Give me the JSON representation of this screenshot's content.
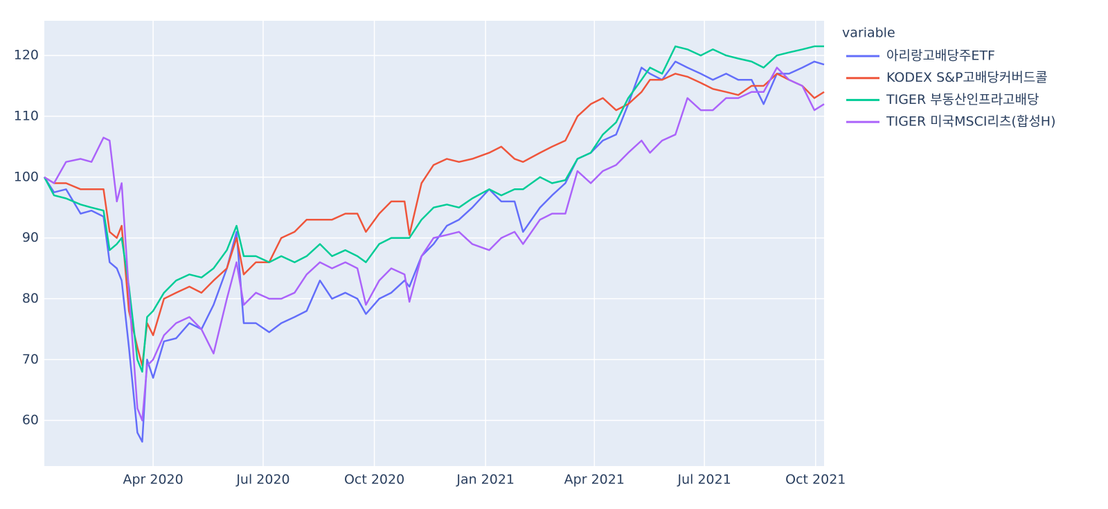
{
  "chart_data": {
    "type": "line",
    "legend_title": "variable",
    "legend_position": "right",
    "grid": true,
    "x": [
      "2020-01-02",
      "2020-01-10",
      "2020-01-20",
      "2020-02-01",
      "2020-02-10",
      "2020-02-20",
      "2020-02-25",
      "2020-03-02",
      "2020-03-06",
      "2020-03-12",
      "2020-03-19",
      "2020-03-23",
      "2020-03-27",
      "2020-04-01",
      "2020-04-10",
      "2020-04-20",
      "2020-05-01",
      "2020-05-11",
      "2020-05-21",
      "2020-06-01",
      "2020-06-09",
      "2020-06-15",
      "2020-06-25",
      "2020-07-06",
      "2020-07-16",
      "2020-07-27",
      "2020-08-06",
      "2020-08-17",
      "2020-08-27",
      "2020-09-07",
      "2020-09-17",
      "2020-09-24",
      "2020-10-05",
      "2020-10-15",
      "2020-10-26",
      "2020-10-30",
      "2020-11-09",
      "2020-11-19",
      "2020-11-30",
      "2020-12-10",
      "2020-12-21",
      "2021-01-04",
      "2021-01-14",
      "2021-01-25",
      "2021-02-01",
      "2021-02-15",
      "2021-02-25",
      "2021-03-08",
      "2021-03-18",
      "2021-03-29",
      "2021-04-08",
      "2021-04-19",
      "2021-04-29",
      "2021-05-10",
      "2021-05-17",
      "2021-05-27",
      "2021-06-07",
      "2021-06-17",
      "2021-06-28",
      "2021-07-08",
      "2021-07-19",
      "2021-07-29",
      "2021-08-09",
      "2021-08-19",
      "2021-08-30",
      "2021-09-09",
      "2021-09-20",
      "2021-09-30",
      "2021-10-08"
    ],
    "series": [
      {
        "name": "아리랑고배당주ETF",
        "color": "#636efa",
        "values": [
          100,
          97.5,
          98,
          94,
          94.5,
          93.5,
          86,
          85,
          83,
          72,
          58,
          56.5,
          70,
          67,
          73,
          73.5,
          76,
          75,
          79,
          85,
          91,
          76,
          76,
          74.5,
          76,
          77,
          78,
          83,
          80,
          81,
          80,
          77.5,
          80,
          81,
          83,
          82,
          87,
          89,
          92,
          93,
          95,
          98,
          96,
          96,
          91,
          95,
          97,
          99,
          103,
          104,
          106,
          107,
          112,
          118,
          117,
          116,
          119,
          118,
          117,
          116,
          117,
          116,
          116,
          112,
          117,
          117,
          118,
          119,
          118.5
        ]
      },
      {
        "name": "KODEX S&P고배당커버드콜",
        "color": "#EF553B",
        "values": [
          100,
          99,
          99,
          98,
          98,
          98,
          91,
          90,
          92,
          78,
          72,
          69,
          76,
          74,
          80,
          81,
          82,
          81,
          83,
          85,
          90,
          84,
          86,
          86,
          90,
          91,
          93,
          93,
          93,
          94,
          94,
          91,
          94,
          96,
          96,
          90.5,
          99,
          102,
          103,
          102.5,
          103,
          104,
          105,
          103,
          102.5,
          104,
          105,
          106,
          110,
          112,
          113,
          111,
          112,
          114,
          116,
          116,
          117,
          116.5,
          115.5,
          114.5,
          114,
          113.5,
          115,
          115,
          117,
          116,
          115,
          113,
          114
        ]
      },
      {
        "name": "TIGER 부동산인프라고배당",
        "color": "#00cc96",
        "values": [
          100,
          97,
          96.5,
          95.5,
          95,
          94.5,
          88,
          89,
          90,
          82,
          70,
          68,
          77,
          78,
          81,
          83,
          84,
          83.5,
          85,
          88,
          92,
          87,
          87,
          86,
          87,
          86,
          87,
          89,
          87,
          88,
          87,
          86,
          89,
          90,
          90,
          90,
          93,
          95,
          95.5,
          95,
          96.5,
          98,
          97,
          98,
          98,
          100,
          99,
          99.5,
          103,
          104,
          107,
          109,
          113,
          116,
          118,
          117,
          121.5,
          121,
          120,
          121,
          120,
          119.5,
          119,
          118,
          120,
          120.5,
          121,
          121.5,
          121.5
        ]
      },
      {
        "name": "TIGER 미국MSCI리츠(합성H)",
        "color": "#ab63fa",
        "values": [
          100,
          99,
          102.5,
          103,
          102.5,
          106.5,
          106,
          96,
          99,
          81,
          62,
          60,
          69,
          70,
          74,
          76,
          77,
          75,
          71,
          80,
          86,
          79,
          81,
          80,
          80,
          81,
          84,
          86,
          85,
          86,
          85,
          79,
          83,
          85,
          84,
          79.5,
          87,
          90,
          90.5,
          91,
          89,
          88,
          90,
          91,
          89,
          93,
          94,
          94,
          101,
          99,
          101,
          102,
          104,
          106,
          104,
          106,
          107,
          113,
          111,
          111,
          113,
          113,
          114,
          114,
          118,
          116,
          115,
          111,
          112
        ]
      }
    ],
    "xlim": [
      "2020-01-02",
      "2021-10-08"
    ],
    "xticks": [
      {
        "value": "2020-04-01",
        "label": "Apr 2020"
      },
      {
        "value": "2020-07-01",
        "label": "Jul 2020"
      },
      {
        "value": "2020-10-01",
        "label": "Oct 2020"
      },
      {
        "value": "2021-01-01",
        "label": "Jan 2021"
      },
      {
        "value": "2021-04-01",
        "label": "Apr 2021"
      },
      {
        "value": "2021-07-01",
        "label": "Jul 2021"
      },
      {
        "value": "2021-10-01",
        "label": "Oct 2021"
      }
    ],
    "ylim": [
      52.5,
      125.7
    ],
    "yticks": [
      60,
      70,
      80,
      90,
      100,
      110,
      120
    ]
  }
}
